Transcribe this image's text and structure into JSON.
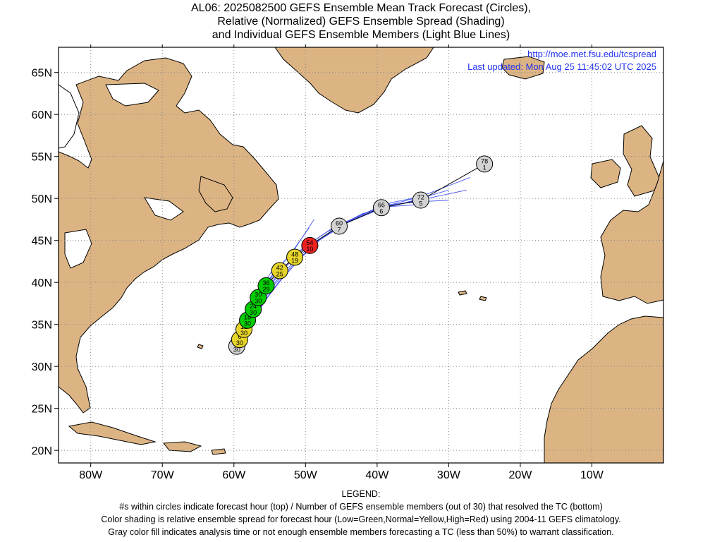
{
  "title": {
    "line1": "AL06: 2025082500 GEFS Ensemble Mean Track Forecast (Circles),",
    "line2": "Relative (Normalized) GEFS Ensemble Spread (Shading)",
    "line3": "and Individual GEFS Ensemble Members (Light Blue Lines)"
  },
  "header": {
    "url": "http://moe.met.fsu.edu/tcspread",
    "updated": "Last updated: Mon Aug 25 11:45:02 UTC 2025"
  },
  "legend": {
    "heading": "LEGEND:",
    "line1": "#s within circles indicate forecast hour (top) / Number of GEFS ensemble members (out of 30) that resolved the TC (bottom)",
    "line2": "Color shading is relative ensemble spread for forecast hour (Low=Green,Normal=Yellow,High=Red) using 2004-11 GEFS climatology.",
    "line3": "Gray color fill indicates analysis time or not enough ensemble members forecasting a TC (less than 50%) to warrant classification."
  },
  "colors": {
    "land": "#dcb483",
    "ocean": "#ffffff",
    "member_track": "#4455ee",
    "mean_track": "#000000",
    "low_spread": "#00cc00",
    "normal_spread": "#e6d42a",
    "high_spread": "#ee2222",
    "gray_fill": "#d3d3d3"
  },
  "chart_data": {
    "type": "map-track",
    "x_axis": {
      "min": -84.5,
      "max": 0.0,
      "ticks": [
        -80,
        -70,
        -60,
        -50,
        -40,
        -30,
        -20,
        -10
      ],
      "tick_labels": [
        "80W",
        "70W",
        "60W",
        "50W",
        "40W",
        "30W",
        "20W",
        "10W"
      ]
    },
    "y_axis": {
      "min": 18.5,
      "max": 68.0,
      "ticks": [
        20,
        25,
        30,
        35,
        40,
        45,
        50,
        55,
        60,
        65
      ],
      "tick_labels": [
        "20N",
        "25N",
        "30N",
        "35N",
        "40N",
        "45N",
        "50N",
        "55N",
        "60N",
        "65N"
      ]
    },
    "grid": true,
    "mean_track": [
      {
        "lon": -59.6,
        "lat": 32.4,
        "hour": "0",
        "members": "30",
        "spread": "gray"
      },
      {
        "lon": -59.2,
        "lat": 33.2,
        "hour": "6",
        "members": "30",
        "spread": "normal"
      },
      {
        "lon": -58.6,
        "lat": 34.4,
        "hour": "12",
        "members": "30",
        "spread": "normal"
      },
      {
        "lon": -58.1,
        "lat": 35.5,
        "hour": "18",
        "members": "30",
        "spread": "low"
      },
      {
        "lon": -57.3,
        "lat": 36.8,
        "hour": "24",
        "members": "30",
        "spread": "low"
      },
      {
        "lon": -56.6,
        "lat": 38.2,
        "hour": "30",
        "members": "30",
        "spread": "low"
      },
      {
        "lon": -55.5,
        "lat": 39.6,
        "hour": "36",
        "members": "29",
        "spread": "low"
      },
      {
        "lon": -53.6,
        "lat": 41.4,
        "hour": "42",
        "members": "25",
        "spread": "normal"
      },
      {
        "lon": -51.5,
        "lat": 43.0,
        "hour": "48",
        "members": "19",
        "spread": "normal"
      },
      {
        "lon": -49.4,
        "lat": 44.4,
        "hour": "54",
        "members": "10",
        "spread": "high"
      },
      {
        "lon": -45.3,
        "lat": 46.7,
        "hour": "60",
        "members": "7",
        "spread": "gray"
      },
      {
        "lon": -39.4,
        "lat": 48.9,
        "hour": "66",
        "members": "6",
        "spread": "gray"
      },
      {
        "lon": -33.9,
        "lat": 49.8,
        "hour": "72",
        "members": "5",
        "spread": "gray"
      },
      {
        "lon": -25.0,
        "lat": 54.1,
        "hour": "78",
        "members": "1",
        "spread": "gray"
      }
    ],
    "member_tracks": [
      [
        [
          -60.0,
          32.2
        ],
        [
          -59.0,
          34.0
        ],
        [
          -58.0,
          36.0
        ],
        [
          -56.5,
          38.5
        ],
        [
          -54.5,
          41.0
        ],
        [
          -52.0,
          43.5
        ],
        [
          -49.5,
          46.5
        ]
      ],
      [
        [
          -59.5,
          32.6
        ],
        [
          -58.5,
          34.5
        ],
        [
          -57.5,
          36.5
        ],
        [
          -56.0,
          39.0
        ],
        [
          -53.8,
          41.6
        ],
        [
          -51.5,
          44.0
        ],
        [
          -48.8,
          47.5
        ]
      ],
      [
        [
          -59.3,
          32.8
        ],
        [
          -58.4,
          34.8
        ],
        [
          -57.0,
          37.0
        ],
        [
          -55.3,
          39.4
        ],
        [
          -53.0,
          41.8
        ],
        [
          -50.5,
          44.0
        ],
        [
          -47.0,
          46.0
        ],
        [
          -42.0,
          48.2
        ],
        [
          -36.0,
          49.5
        ],
        [
          -30.0,
          51.0
        ]
      ],
      [
        [
          -59.1,
          33.0
        ],
        [
          -58.2,
          35.0
        ],
        [
          -56.8,
          37.3
        ],
        [
          -55.0,
          39.6
        ],
        [
          -52.6,
          42.0
        ],
        [
          -50.0,
          44.3
        ],
        [
          -46.0,
          46.6
        ],
        [
          -40.5,
          48.7
        ],
        [
          -34.0,
          50.2
        ],
        [
          -27.0,
          52.5
        ]
      ],
      [
        [
          -59.0,
          33.1
        ],
        [
          -58.0,
          35.1
        ],
        [
          -56.5,
          37.4
        ],
        [
          -54.6,
          39.7
        ],
        [
          -52.0,
          42.1
        ],
        [
          -49.2,
          44.5
        ],
        [
          -45.0,
          46.9
        ],
        [
          -39.0,
          49.0
        ],
        [
          -33.0,
          50.0
        ],
        [
          -27.5,
          51.0
        ]
      ],
      [
        [
          -58.8,
          33.2
        ],
        [
          -57.7,
          35.3
        ],
        [
          -56.1,
          37.6
        ],
        [
          -54.2,
          39.9
        ],
        [
          -51.6,
          42.2
        ],
        [
          -48.8,
          44.6
        ],
        [
          -44.8,
          47.0
        ],
        [
          -39.2,
          49.2
        ],
        [
          -34.0,
          49.6
        ],
        [
          -30.0,
          49.8
        ]
      ],
      [
        [
          -58.5,
          33.4
        ],
        [
          -57.4,
          35.4
        ],
        [
          -55.8,
          37.7
        ],
        [
          -53.8,
          40.0
        ],
        [
          -51.2,
          42.4
        ],
        [
          -48.5,
          44.8
        ],
        [
          -44.2,
          47.1
        ],
        [
          -38.8,
          49.0
        ],
        [
          -33.6,
          49.3
        ]
      ],
      [
        [
          -60.3,
          31.7
        ],
        [
          -59.3,
          33.6
        ],
        [
          -58.3,
          35.8
        ],
        [
          -57.0,
          38.0
        ],
        [
          -55.6,
          40.2
        ],
        [
          -54.0,
          42.2
        ]
      ],
      [
        [
          -59.8,
          32.0
        ],
        [
          -58.9,
          34.0
        ],
        [
          -57.9,
          36.0
        ],
        [
          -56.6,
          38.2
        ],
        [
          -55.0,
          40.5
        ],
        [
          -53.0,
          42.5
        ]
      ],
      [
        [
          -58.6,
          33.6
        ],
        [
          -57.2,
          35.6
        ],
        [
          -55.5,
          38.0
        ],
        [
          -53.3,
          40.4
        ],
        [
          -50.8,
          42.8
        ],
        [
          -47.8,
          45.2
        ],
        [
          -43.5,
          47.5
        ],
        [
          -38.0,
          49.5
        ],
        [
          -34.0,
          50.2
        ]
      ]
    ]
  }
}
